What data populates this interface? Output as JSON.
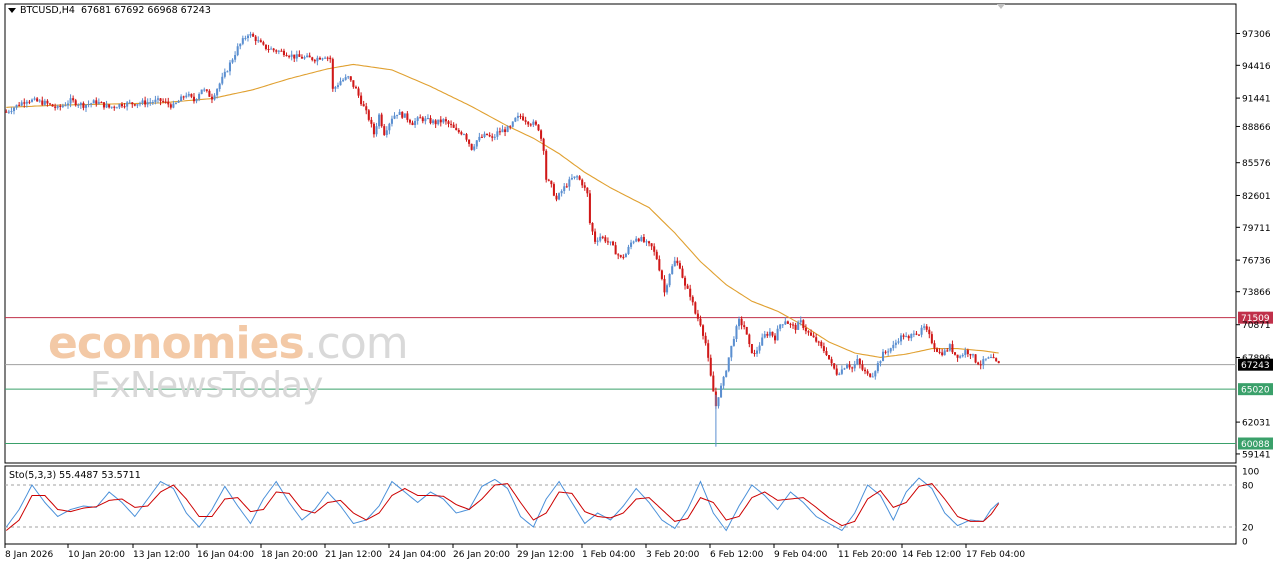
{
  "header": {
    "symbol": "BTCUSD,H4",
    "ohlc": "67681 67692 66968 67243"
  },
  "stochastic": {
    "label": "Sto(5,3,3) 55.4487 53.5711",
    "main_color": "#4a90d9",
    "signal_color": "#cc0000"
  },
  "watermark": {
    "brand": "economies",
    "brand_suffix": ".com",
    "sub": "FxNewsToday"
  },
  "colors": {
    "bull": "#5b8fd0",
    "bear": "#d01818",
    "ma": "#e0a030",
    "resistance": "#c0304a",
    "support": "#3aa06a",
    "current": "#a0a0a0"
  },
  "chart_data": {
    "type": "candlestick",
    "symbol": "BTCUSD",
    "timeframe": "H4",
    "price_ticks": [
      "97306",
      "94416",
      "91441",
      "88866",
      "85576",
      "82601",
      "79711",
      "76736",
      "73866",
      "70871",
      "67896",
      "62031",
      "59141"
    ],
    "price_ticks_values": [
      97306,
      94416,
      91441,
      88866,
      85576,
      82601,
      79711,
      76736,
      73866,
      70871,
      67896,
      62031,
      59141
    ],
    "ylim": [
      58500,
      99800
    ],
    "x_labels": [
      "8 Jan 2026",
      "10 Jan 20:00",
      "13 Jan 12:00",
      "16 Jan 04:00",
      "18 Jan 20:00",
      "21 Jan 12:00",
      "24 Jan 04:00",
      "26 Jan 20:00",
      "29 Jan 12:00",
      "1 Feb 04:00",
      "3 Feb 20:00",
      "6 Feb 12:00",
      "9 Feb 04:00",
      "11 Feb 20:00",
      "14 Feb 12:00",
      "17 Feb 04:00"
    ],
    "levels": [
      {
        "label": "71509",
        "value": 71509,
        "kind": "resistance"
      },
      {
        "label": "67243",
        "value": 67243,
        "kind": "current"
      },
      {
        "label": "65020",
        "value": 65020,
        "kind": "support"
      },
      {
        "label": "60088",
        "value": 60088,
        "kind": "support"
      }
    ],
    "price_path": [
      [
        0,
        90200
      ],
      [
        8,
        91300
      ],
      [
        15,
        91000
      ],
      [
        20,
        90500
      ],
      [
        25,
        91200
      ],
      [
        30,
        90800
      ],
      [
        35,
        91100
      ],
      [
        40,
        90600
      ],
      [
        45,
        90900
      ],
      [
        52,
        91000
      ],
      [
        60,
        91200
      ],
      [
        65,
        90700
      ],
      [
        70,
        91800
      ],
      [
        73,
        91200
      ],
      [
        76,
        92300
      ],
      [
        80,
        91500
      ],
      [
        85,
        93600
      ],
      [
        90,
        96000
      ],
      [
        94,
        97300
      ],
      [
        97,
        96800
      ],
      [
        100,
        96100
      ],
      [
        104,
        95800
      ],
      [
        108,
        95600
      ],
      [
        112,
        95200
      ],
      [
        116,
        95100
      ],
      [
        120,
        95000
      ],
      [
        124,
        95300
      ],
      [
        126,
        95000
      ],
      [
        127,
        92200
      ],
      [
        130,
        93000
      ],
      [
        133,
        93300
      ],
      [
        136,
        92200
      ],
      [
        139,
        90600
      ],
      [
        141,
        89600
      ],
      [
        143,
        88200
      ],
      [
        145,
        89900
      ],
      [
        147,
        88300
      ],
      [
        150,
        89700
      ],
      [
        152,
        90100
      ],
      [
        155,
        89800
      ],
      [
        158,
        89200
      ],
      [
        161,
        89600
      ],
      [
        164,
        89400
      ],
      [
        167,
        89200
      ],
      [
        170,
        89400
      ],
      [
        173,
        88900
      ],
      [
        175,
        88400
      ],
      [
        178,
        88300
      ],
      [
        181,
        86900
      ],
      [
        183,
        87600
      ],
      [
        185,
        87900
      ],
      [
        187,
        88100
      ],
      [
        189,
        87700
      ],
      [
        191,
        88300
      ],
      [
        193,
        88500
      ],
      [
        196,
        88700
      ],
      [
        198,
        89500
      ],
      [
        200,
        89800
      ],
      [
        203,
        89300
      ],
      [
        205,
        89100
      ],
      [
        207,
        88700
      ],
      [
        209,
        86900
      ],
      [
        210,
        84100
      ],
      [
        212,
        83400
      ],
      [
        214,
        82200
      ],
      [
        216,
        83000
      ],
      [
        218,
        83600
      ],
      [
        220,
        84100
      ],
      [
        222,
        84300
      ],
      [
        224,
        83700
      ],
      [
        226,
        82700
      ],
      [
        227,
        80100
      ],
      [
        229,
        78500
      ],
      [
        231,
        78900
      ],
      [
        233,
        78600
      ],
      [
        235,
        78200
      ],
      [
        237,
        77500
      ],
      [
        239,
        76900
      ],
      [
        241,
        77300
      ],
      [
        243,
        78300
      ],
      [
        245,
        78800
      ],
      [
        247,
        78600
      ],
      [
        249,
        78200
      ],
      [
        251,
        77900
      ],
      [
        253,
        76900
      ],
      [
        255,
        75100
      ],
      [
        256,
        73800
      ],
      [
        258,
        75600
      ],
      [
        260,
        76600
      ],
      [
        262,
        76200
      ],
      [
        264,
        74300
      ],
      [
        266,
        73600
      ],
      [
        268,
        71900
      ],
      [
        270,
        71000
      ],
      [
        272,
        69200
      ],
      [
        274,
        66100
      ],
      [
        276,
        63500
      ],
      [
        277,
        64500
      ],
      [
        279,
        65900
      ],
      [
        281,
        67900
      ],
      [
        283,
        69800
      ],
      [
        285,
        71200
      ],
      [
        287,
        70700
      ],
      [
        289,
        68900
      ],
      [
        291,
        68100
      ],
      [
        293,
        69100
      ],
      [
        295,
        69900
      ],
      [
        297,
        70200
      ],
      [
        299,
        69700
      ],
      [
        301,
        70900
      ],
      [
        303,
        71300
      ],
      [
        305,
        70800
      ],
      [
        307,
        70600
      ],
      [
        309,
        71100
      ],
      [
        311,
        70400
      ],
      [
        313,
        69800
      ],
      [
        315,
        69400
      ],
      [
        317,
        68800
      ],
      [
        319,
        68300
      ],
      [
        321,
        67200
      ],
      [
        323,
        66500
      ],
      [
        325,
        66800
      ],
      [
        327,
        67400
      ],
      [
        329,
        66900
      ],
      [
        331,
        67600
      ],
      [
        333,
        66800
      ],
      [
        335,
        66300
      ],
      [
        337,
        66400
      ],
      [
        339,
        67300
      ],
      [
        341,
        68200
      ],
      [
        343,
        68600
      ],
      [
        345,
        68900
      ],
      [
        347,
        69600
      ],
      [
        349,
        69900
      ],
      [
        351,
        69500
      ],
      [
        353,
        70300
      ],
      [
        355,
        70100
      ],
      [
        357,
        70600
      ],
      [
        359,
        69800
      ],
      [
        361,
        68900
      ],
      [
        363,
        68300
      ],
      [
        365,
        68400
      ],
      [
        367,
        68900
      ],
      [
        369,
        68200
      ],
      [
        371,
        68000
      ],
      [
        373,
        68500
      ],
      [
        375,
        68300
      ],
      [
        377,
        67600
      ],
      [
        379,
        67300
      ],
      [
        381,
        67700
      ],
      [
        383,
        67800
      ],
      [
        385,
        67400
      ],
      [
        386,
        67243
      ]
    ],
    "ma_path": [
      [
        0,
        90600
      ],
      [
        20,
        90800
      ],
      [
        40,
        90900
      ],
      [
        60,
        91000
      ],
      [
        80,
        91400
      ],
      [
        96,
        92200
      ],
      [
        110,
        93200
      ],
      [
        125,
        94100
      ],
      [
        135,
        94500
      ],
      [
        150,
        94000
      ],
      [
        165,
        92500
      ],
      [
        180,
        90800
      ],
      [
        195,
        88900
      ],
      [
        205,
        87800
      ],
      [
        215,
        86400
      ],
      [
        225,
        84700
      ],
      [
        235,
        83300
      ],
      [
        250,
        81500
      ],
      [
        260,
        79200
      ],
      [
        270,
        76600
      ],
      [
        280,
        74500
      ],
      [
        290,
        73000
      ],
      [
        300,
        72100
      ],
      [
        310,
        70800
      ],
      [
        320,
        69300
      ],
      [
        330,
        68300
      ],
      [
        340,
        67900
      ],
      [
        350,
        68200
      ],
      [
        360,
        68700
      ],
      [
        370,
        68700
      ],
      [
        380,
        68500
      ],
      [
        386,
        68300
      ]
    ],
    "n_bars": 387,
    "stochastic": {
      "k_period": 5,
      "d_period": 3,
      "slowing": 3,
      "main_last": 55.4487,
      "signal_last": 53.5711,
      "levels": [
        80,
        20
      ],
      "ticks": [
        "100",
        "80",
        "20",
        "0"
      ],
      "ticks_values": [
        100,
        80,
        20,
        0
      ],
      "ylim": [
        0,
        100
      ],
      "main_path": [
        [
          0,
          20
        ],
        [
          5,
          45
        ],
        [
          10,
          80
        ],
        [
          15,
          55
        ],
        [
          20,
          35
        ],
        [
          25,
          45
        ],
        [
          30,
          50
        ],
        [
          35,
          48
        ],
        [
          40,
          70
        ],
        [
          45,
          55
        ],
        [
          50,
          35
        ],
        [
          55,
          60
        ],
        [
          60,
          85
        ],
        [
          65,
          75
        ],
        [
          70,
          40
        ],
        [
          75,
          20
        ],
        [
          80,
          45
        ],
        [
          85,
          78
        ],
        [
          90,
          50
        ],
        [
          95,
          25
        ],
        [
          100,
          60
        ],
        [
          105,
          85
        ],
        [
          110,
          55
        ],
        [
          115,
          30
        ],
        [
          120,
          45
        ],
        [
          125,
          70
        ],
        [
          130,
          50
        ],
        [
          135,
          25
        ],
        [
          140,
          30
        ],
        [
          145,
          50
        ],
        [
          150,
          85
        ],
        [
          155,
          70
        ],
        [
          160,
          55
        ],
        [
          165,
          70
        ],
        [
          170,
          60
        ],
        [
          175,
          40
        ],
        [
          180,
          45
        ],
        [
          185,
          78
        ],
        [
          190,
          88
        ],
        [
          195,
          75
        ],
        [
          200,
          35
        ],
        [
          205,
          20
        ],
        [
          210,
          60
        ],
        [
          215,
          85
        ],
        [
          220,
          55
        ],
        [
          225,
          25
        ],
        [
          230,
          40
        ],
        [
          235,
          30
        ],
        [
          240,
          50
        ],
        [
          245,
          75
        ],
        [
          250,
          55
        ],
        [
          255,
          30
        ],
        [
          260,
          18
        ],
        [
          265,
          45
        ],
        [
          270,
          85
        ],
        [
          275,
          40
        ],
        [
          280,
          15
        ],
        [
          285,
          50
        ],
        [
          290,
          80
        ],
        [
          295,
          65
        ],
        [
          300,
          45
        ],
        [
          305,
          70
        ],
        [
          310,
          55
        ],
        [
          315,
          35
        ],
        [
          320,
          25
        ],
        [
          325,
          15
        ],
        [
          330,
          40
        ],
        [
          335,
          80
        ],
        [
          340,
          65
        ],
        [
          345,
          30
        ],
        [
          350,
          70
        ],
        [
          355,
          90
        ],
        [
          360,
          75
        ],
        [
          365,
          40
        ],
        [
          370,
          22
        ],
        [
          375,
          30
        ],
        [
          380,
          28
        ],
        [
          383,
          45
        ],
        [
          386,
          55
        ]
      ],
      "signal_path": [
        [
          0,
          15
        ],
        [
          5,
          30
        ],
        [
          10,
          65
        ],
        [
          15,
          65
        ],
        [
          20,
          45
        ],
        [
          25,
          42
        ],
        [
          30,
          47
        ],
        [
          35,
          49
        ],
        [
          40,
          58
        ],
        [
          45,
          60
        ],
        [
          50,
          48
        ],
        [
          55,
          50
        ],
        [
          60,
          70
        ],
        [
          65,
          80
        ],
        [
          70,
          60
        ],
        [
          75,
          35
        ],
        [
          80,
          35
        ],
        [
          85,
          60
        ],
        [
          90,
          62
        ],
        [
          95,
          42
        ],
        [
          100,
          45
        ],
        [
          105,
          70
        ],
        [
          110,
          68
        ],
        [
          115,
          45
        ],
        [
          120,
          40
        ],
        [
          125,
          55
        ],
        [
          130,
          58
        ],
        [
          135,
          40
        ],
        [
          140,
          30
        ],
        [
          145,
          40
        ],
        [
          150,
          65
        ],
        [
          155,
          75
        ],
        [
          160,
          65
        ],
        [
          165,
          65
        ],
        [
          170,
          64
        ],
        [
          175,
          52
        ],
        [
          180,
          45
        ],
        [
          185,
          60
        ],
        [
          190,
          80
        ],
        [
          195,
          82
        ],
        [
          200,
          55
        ],
        [
          205,
          30
        ],
        [
          210,
          40
        ],
        [
          215,
          70
        ],
        [
          220,
          68
        ],
        [
          225,
          42
        ],
        [
          230,
          35
        ],
        [
          235,
          33
        ],
        [
          240,
          40
        ],
        [
          245,
          60
        ],
        [
          250,
          62
        ],
        [
          255,
          45
        ],
        [
          260,
          28
        ],
        [
          265,
          32
        ],
        [
          270,
          62
        ],
        [
          275,
          55
        ],
        [
          280,
          30
        ],
        [
          285,
          35
        ],
        [
          290,
          62
        ],
        [
          295,
          70
        ],
        [
          300,
          58
        ],
        [
          305,
          60
        ],
        [
          310,
          62
        ],
        [
          315,
          48
        ],
        [
          320,
          33
        ],
        [
          325,
          22
        ],
        [
          330,
          28
        ],
        [
          335,
          60
        ],
        [
          340,
          72
        ],
        [
          345,
          48
        ],
        [
          350,
          55
        ],
        [
          355,
          78
        ],
        [
          360,
          82
        ],
        [
          365,
          60
        ],
        [
          370,
          35
        ],
        [
          375,
          28
        ],
        [
          380,
          28
        ],
        [
          383,
          38
        ],
        [
          386,
          53.5711
        ]
      ]
    }
  }
}
